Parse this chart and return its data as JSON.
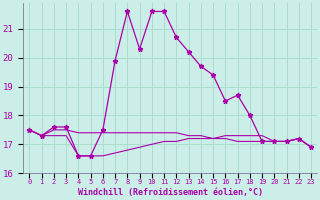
{
  "xlabel": "Windchill (Refroidissement éolien,°C)",
  "background_color": "#cceee8",
  "grid_color": "#aaddcc",
  "line_color": "#aa00aa",
  "x_hours": [
    0,
    1,
    2,
    3,
    4,
    5,
    6,
    7,
    8,
    9,
    10,
    11,
    12,
    13,
    14,
    15,
    16,
    17,
    18,
    19,
    20,
    21,
    22,
    23
  ],
  "temp_main": [
    17.5,
    17.3,
    17.6,
    17.6,
    16.6,
    16.6,
    17.5,
    19.9,
    21.6,
    20.3,
    21.6,
    21.6,
    20.7,
    20.2,
    19.7,
    19.4,
    18.5,
    18.7,
    18.0,
    17.1,
    17.1,
    17.1,
    17.2,
    16.9
  ],
  "temp_upper": [
    17.5,
    17.3,
    17.5,
    17.5,
    17.4,
    17.4,
    17.4,
    17.4,
    17.4,
    17.4,
    17.4,
    17.4,
    17.4,
    17.3,
    17.3,
    17.2,
    17.2,
    17.1,
    17.1,
    17.1,
    17.1,
    17.1,
    17.2,
    16.9
  ],
  "temp_lower": [
    17.5,
    17.3,
    17.3,
    17.3,
    16.6,
    16.6,
    16.6,
    16.7,
    16.8,
    16.9,
    17.0,
    17.1,
    17.1,
    17.2,
    17.2,
    17.2,
    17.3,
    17.3,
    17.3,
    17.3,
    17.1,
    17.1,
    17.2,
    16.9
  ],
  "ylim": [
    16.0,
    21.9
  ],
  "yticks": [
    16,
    17,
    18,
    19,
    20,
    21
  ],
  "xlim": [
    -0.5,
    23.5
  ],
  "figsize": [
    3.2,
    2.0
  ],
  "dpi": 100
}
